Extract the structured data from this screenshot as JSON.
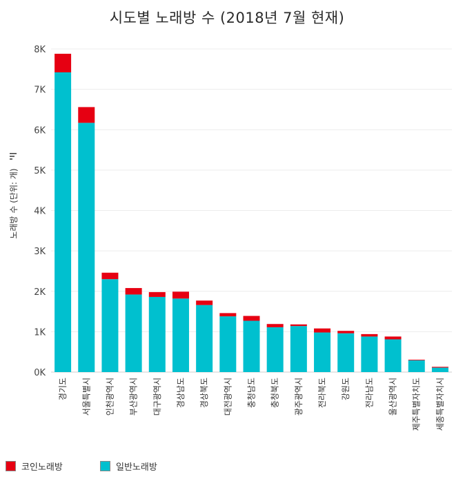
{
  "chart_data": {
    "type": "bar",
    "stacked": true,
    "title": "시도별 노래방 수 (2018년 7월 현재)",
    "xlabel": "",
    "ylabel": "노래방 수 (단위: 개)",
    "ylim": [
      0,
      8000
    ],
    "yticks": [
      0,
      1000,
      2000,
      3000,
      4000,
      5000,
      6000,
      7000,
      8000
    ],
    "ytick_labels": [
      "0K",
      "1K",
      "2K",
      "3K",
      "4K",
      "5K",
      "6K",
      "7K",
      "8K"
    ],
    "grid": true,
    "legend_position": "bottom-left",
    "categories": [
      "경기도",
      "서울특별시",
      "인천광역시",
      "부산광역시",
      "대구광역시",
      "경상남도",
      "경상북도",
      "대전광역시",
      "충청남도",
      "충청북도",
      "광주광역시",
      "전라북도",
      "강원도",
      "전라남도",
      "울산광역시",
      "제주특별자치도",
      "세종특별자치시"
    ],
    "series": [
      {
        "name": "일반노래방",
        "color": "#00c0cf",
        "values": [
          7420,
          6170,
          2300,
          1920,
          1860,
          1820,
          1660,
          1380,
          1270,
          1110,
          1140,
          980,
          960,
          880,
          810,
          290,
          110
        ]
      },
      {
        "name": "코인노래방",
        "color": "#e60012",
        "values": [
          460,
          390,
          160,
          160,
          120,
          170,
          110,
          80,
          120,
          80,
          40,
          100,
          60,
          60,
          70,
          15,
          20
        ]
      }
    ]
  },
  "legend": [
    {
      "label": "코인노래방",
      "color": "#e60012"
    },
    {
      "label": "일반노래방",
      "color": "#00c0cf"
    }
  ]
}
